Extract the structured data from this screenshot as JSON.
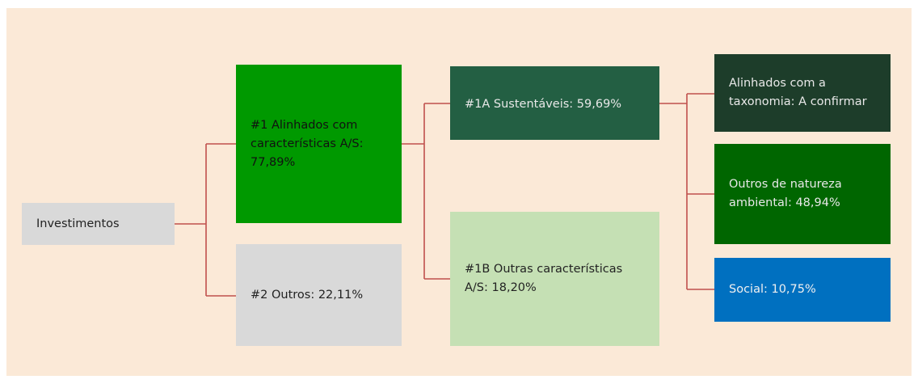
{
  "nodes": [
    {
      "label": "Investimentos"
    },
    {
      "label": "#1 Alinhados com características A/S: 77,89%"
    },
    {
      "label": "#2 Outros: 22,11%"
    },
    {
      "label": "#1A Sustentáveis: 59,69%"
    },
    {
      "label": "#1B Outras características A/S: 18,20%"
    },
    {
      "label": "Alinhados com a taxonomia: A confirmar"
    },
    {
      "label": "Outros de natureza ambiental: 48,94%"
    },
    {
      "label": "Social: 10,75%"
    }
  ]
}
